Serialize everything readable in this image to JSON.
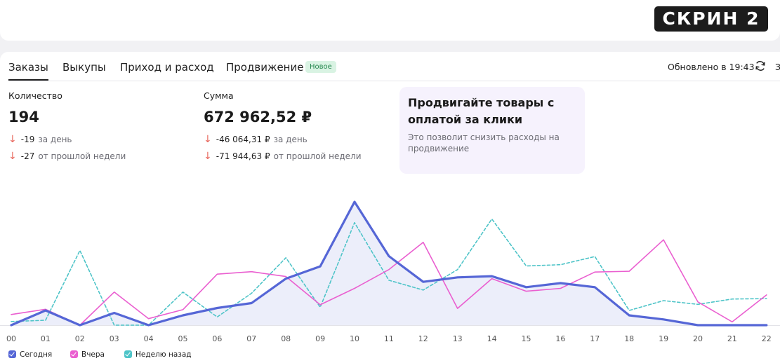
{
  "badge": "СКРИН 2",
  "tabs": [
    {
      "label": "Заказы",
      "active": true
    },
    {
      "label": "Выкупы",
      "active": false
    },
    {
      "label": "Приход и расход",
      "active": false
    },
    {
      "label": "Продвижение",
      "active": false
    }
  ],
  "new_badge": "Новое",
  "updated": "Обновлено в 19:43",
  "cut_label": "З",
  "metrics": {
    "quantity": {
      "label": "Количество",
      "value": "194",
      "deltas": [
        {
          "value": "-19",
          "desc": "за день"
        },
        {
          "value": "-27",
          "desc": "от прошлой недели"
        }
      ]
    },
    "sum": {
      "label": "Сумма",
      "value": "672 962,52 ₽",
      "deltas": [
        {
          "value": "-46 064,31 ₽",
          "desc": "за день"
        },
        {
          "value": "-71 944,63 ₽",
          "desc": "от прошлой недели"
        }
      ]
    }
  },
  "promo": {
    "title": "Продвигайте товары с оплатой за клики",
    "text": "Это позволит снизить расходы на продвижение"
  },
  "colors": {
    "today": "#5566d6",
    "yesterday": "#ea5fd0",
    "week_ago": "#4ec4c8",
    "down_arrow": "#e8665c",
    "new_badge_bg": "#d9f3e3"
  },
  "icons": {
    "refresh": "refresh-icon",
    "down": "arrow-down-icon",
    "legend_check": "check-icon"
  },
  "chart_data": {
    "type": "line",
    "x": [
      "00",
      "01",
      "02",
      "03",
      "04",
      "05",
      "06",
      "07",
      "08",
      "09",
      "10",
      "11",
      "12",
      "13",
      "14",
      "15",
      "16",
      "17",
      "18",
      "19",
      "20",
      "21",
      "22"
    ],
    "ylim": [
      0,
      30
    ],
    "grid": false,
    "legend_position": "bottom-left",
    "series": [
      {
        "name": "Сегодня",
        "color": "#5566d6",
        "style": "solid-area",
        "values": [
          0,
          3.6,
          0,
          3,
          0,
          2.4,
          4.2,
          5.4,
          11.4,
          14.4,
          30.2,
          16.9,
          10.6,
          11.7,
          12,
          9.3,
          10.3,
          9.3,
          2.4,
          1.4,
          0,
          0,
          0
        ]
      },
      {
        "name": "Вчера",
        "color": "#ea5fd0",
        "style": "solid",
        "values": [
          2.6,
          3.9,
          0,
          8.1,
          1.6,
          3.8,
          12.5,
          13.1,
          11.9,
          5,
          9,
          13.6,
          20.3,
          4.1,
          11.4,
          8.3,
          9,
          13,
          13.2,
          20.9,
          5.7,
          0.8,
          7.4
        ]
      },
      {
        "name": "Неделю назад",
        "color": "#4ec4c8",
        "style": "dashed",
        "values": [
          0.9,
          1.2,
          18.3,
          0,
          0,
          8.1,
          2,
          7.8,
          16.5,
          4.4,
          25.1,
          11,
          8.6,
          13.6,
          26,
          14.5,
          14.8,
          16.8,
          3.6,
          6,
          5.1,
          6.4,
          6.5
        ]
      }
    ]
  }
}
